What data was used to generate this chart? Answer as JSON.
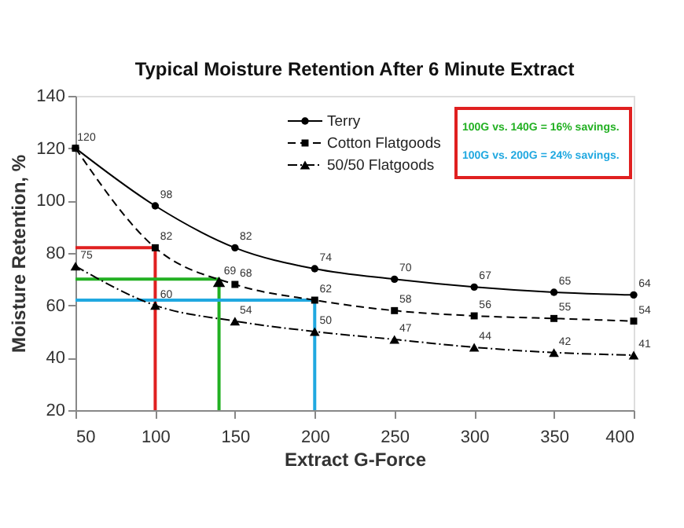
{
  "chart_data": {
    "type": "line",
    "title": "Typical Moisture Retention After 6 Minute Extract",
    "xlabel": "Extract G-Force",
    "ylabel": "Moisture Retention, %",
    "xlim": [
      50,
      400
    ],
    "xticks": [
      50,
      100,
      150,
      200,
      250,
      300,
      350,
      400
    ],
    "ylim": [
      20,
      140
    ],
    "yticks": [
      20,
      40,
      60,
      80,
      100,
      120,
      140
    ],
    "grid": false,
    "legend": "top right",
    "data_labels": true,
    "series": [
      {
        "x": [
          50,
          100,
          100
        ],
        "values": [
          82,
          82,
          20
        ],
        "color": "#e02020",
        "marker": "none",
        "line_style": "solid",
        "data_labels": false
      },
      {
        "x": [
          50,
          140,
          140
        ],
        "values": [
          70,
          70,
          20
        ],
        "color": "#22b022",
        "marker": "none",
        "line_style": "solid",
        "data_labels": false
      },
      {
        "x": [
          50,
          200,
          200
        ],
        "values": [
          62,
          62,
          20
        ],
        "color": "#20a8e0",
        "marker": "none",
        "line_style": "solid",
        "data_labels": false
      },
      {
        "name": "Terry",
        "x": [
          50,
          100,
          150,
          200,
          250,
          300,
          350,
          400
        ],
        "values": [
          120,
          98,
          82,
          74,
          70,
          67,
          65,
          64
        ],
        "color": "#000000",
        "marker": "circle",
        "line_style": "solid"
      },
      {
        "name": "Cotton Flatgoods",
        "x": [
          50,
          100,
          150,
          200,
          250,
          300,
          350,
          400
        ],
        "values": [
          120,
          82,
          68,
          62,
          58,
          56,
          55,
          54
        ],
        "value_labels": [
          null,
          "82",
          "68",
          "62",
          "58",
          "56",
          "55",
          "54"
        ],
        "color": "#000000",
        "marker": "square",
        "line_style": "dashed"
      },
      {
        "name": "50/50 Flatgoods",
        "x": [
          50,
          100,
          150,
          200,
          250,
          300,
          350,
          400
        ],
        "values": [
          75,
          60,
          54,
          50,
          47,
          44,
          42,
          41
        ],
        "color": "#000000",
        "marker": "triangle",
        "line_style": "dotted"
      },
      {
        "type": "scatter",
        "x": [
          140
        ],
        "values": [
          69
        ],
        "color": "#000000",
        "marker": "triangle"
      }
    ],
    "annotations": [
      "100G vs. 140G = 16% savings.",
      "100G vs. 200G = 24% savings."
    ]
  }
}
